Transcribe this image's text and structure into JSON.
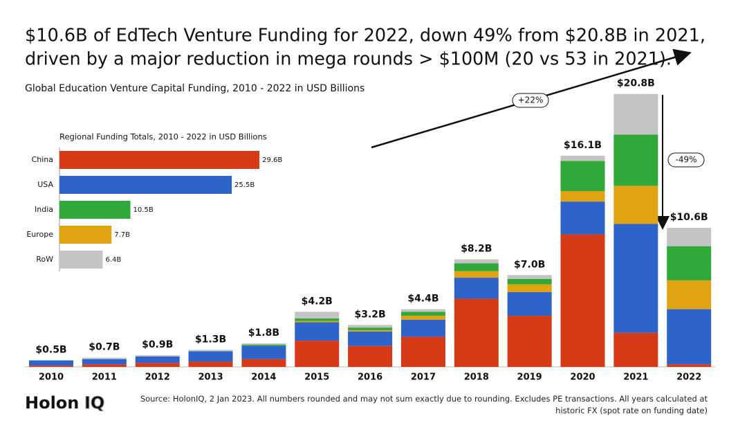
{
  "title_lines": [
    "$10.6B of EdTech Venture Funding for 2022, down 49% from $20.8B in 2021,",
    "driven by a major reduction in mega rounds > $100M (20 vs 53 in 2021)."
  ],
  "subtitle": "Global Education Venture Capital Funding, 2010 - 2022 in USD Billions",
  "annotations": [
    "+22%",
    "-49%"
  ],
  "logo": [
    "Holon",
    "IQ"
  ],
  "source": "Source: HolonIQ, 2 Jan 2023. All numbers rounded and may not sum exactly due to rounding. Excludes PE transactions. All years calculated at historic FX (spot rate on funding date)",
  "chart_data": [
    {
      "type": "stacked_bar",
      "categories": [
        "2010",
        "2011",
        "2012",
        "2013",
        "2014",
        "2015",
        "2016",
        "2017",
        "2018",
        "2019",
        "2020",
        "2021",
        "2022"
      ],
      "series": [
        {
          "color": "#d63a17",
          "values": [
            0.1,
            0.2,
            0.3,
            0.4,
            0.6,
            2.0,
            1.6,
            2.3,
            5.2,
            3.9,
            10.1,
            2.6,
            0.2
          ]
        },
        {
          "color": "#2e63c9",
          "values": [
            0.4,
            0.4,
            0.5,
            0.8,
            1.0,
            1.4,
            1.1,
            1.3,
            1.6,
            1.8,
            2.5,
            8.3,
            4.2
          ]
        },
        {
          "color": "#e0a312",
          "values": [
            0,
            0,
            0,
            0,
            0,
            0.1,
            0.1,
            0.3,
            0.5,
            0.6,
            0.8,
            2.9,
            2.2
          ]
        },
        {
          "color": "#30a93a",
          "values": [
            0,
            0,
            0,
            0,
            0.1,
            0.2,
            0.2,
            0.3,
            0.6,
            0.4,
            2.3,
            3.9,
            2.6
          ]
        },
        {
          "color": "#c4c4c4",
          "values": [
            0,
            0.1,
            0.1,
            0.1,
            0.1,
            0.5,
            0.2,
            0.2,
            0.3,
            0.3,
            0.4,
            3.1,
            1.4
          ]
        }
      ],
      "totals": {
        "values": [
          0.5,
          0.7,
          0.9,
          1.3,
          1.8,
          4.2,
          3.2,
          4.4,
          8.2,
          7.0,
          16.1,
          20.8,
          10.6
        ],
        "value_labels": [
          "$0.5B",
          "$0.7B",
          "$0.9B",
          "$1.3B",
          "$1.8B",
          "$4.2B",
          "$3.2B",
          "$4.4B",
          "$8.2B",
          "$7.0B",
          "$16.1B",
          "$20.8B",
          "$10.6B"
        ]
      },
      "ylim": [
        0,
        22
      ]
    },
    {
      "type": "hbar",
      "title": "Regional Funding Totals, 2010 - 2022 in USD Billions",
      "categories": [
        "China",
        "USA",
        "India",
        "Europe",
        "RoW"
      ],
      "values": [
        29.6,
        25.5,
        10.5,
        7.7,
        6.4
      ],
      "value_labels": [
        "29.6B",
        "25.5B",
        "10.5B",
        "7.7B",
        "6.4B"
      ],
      "colors": [
        "#d63a17",
        "#2e63c9",
        "#30a93a",
        "#e0a312",
        "#c4c4c4"
      ],
      "xlim": [
        0,
        30
      ]
    }
  ]
}
